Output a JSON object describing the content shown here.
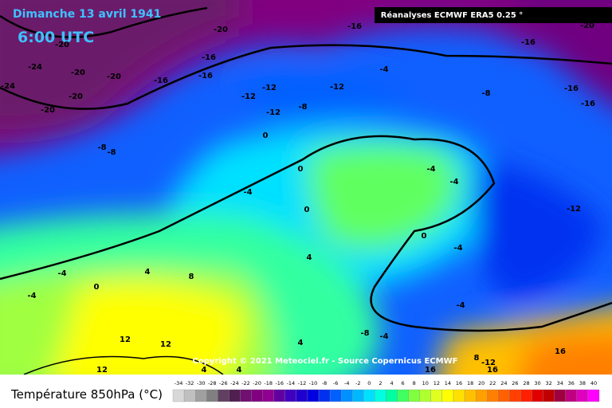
{
  "header": {
    "date": "Dimanche 13 avril 1941",
    "time": "6:00 UTC",
    "source": "Réanalyses ECMWF ERA5 0.25 °",
    "copyright": "Copyright © 2021 Meteociel.fr - Source Copernicus ECMWF"
  },
  "legend": {
    "title": "Température 850hPa (°C)",
    "ticks": [
      -34,
      -32,
      -30,
      -28,
      -26,
      -24,
      -22,
      -20,
      -18,
      -16,
      -14,
      -12,
      -10,
      -8,
      -6,
      -4,
      -2,
      0,
      2,
      4,
      6,
      8,
      10,
      12,
      14,
      16,
      18,
      20,
      22,
      24,
      26,
      28,
      30,
      32,
      34,
      36,
      38,
      40
    ],
    "colors": [
      "#d8d8d8",
      "#c0c0c0",
      "#a0a0a0",
      "#808080",
      "#604060",
      "#502050",
      "#701070",
      "#800080",
      "#900090",
      "#6000a0",
      "#4000c0",
      "#2000d0",
      "#0000e0",
      "#0030f0",
      "#0060ff",
      "#0090ff",
      "#00b8ff",
      "#00e0ff",
      "#00ffe0",
      "#00ffa0",
      "#40ff60",
      "#80ff40",
      "#b0ff30",
      "#e0ff20",
      "#ffff00",
      "#ffe000",
      "#ffc000",
      "#ffa000",
      "#ff8000",
      "#ff6000",
      "#ff4000",
      "#ff2000",
      "#e00000",
      "#c00000",
      "#a00040",
      "#c00080",
      "#e000c0",
      "#ff00ff"
    ]
  },
  "contour_labels": [
    -20,
    -16,
    -16,
    -20,
    -24,
    -20,
    -16,
    -16,
    -20,
    -20,
    -16,
    -24,
    -20,
    -20,
    -12,
    -12,
    -12,
    -12,
    -8,
    -4,
    -8,
    -16,
    -16,
    -8,
    -8,
    0,
    0,
    -4,
    0,
    -4,
    -4,
    -12,
    0,
    4,
    -4,
    -4,
    4,
    8,
    -4,
    0,
    -4,
    12,
    12,
    4,
    -8,
    -4,
    8,
    -12,
    16,
    16,
    16,
    12,
    4,
    4
  ]
}
